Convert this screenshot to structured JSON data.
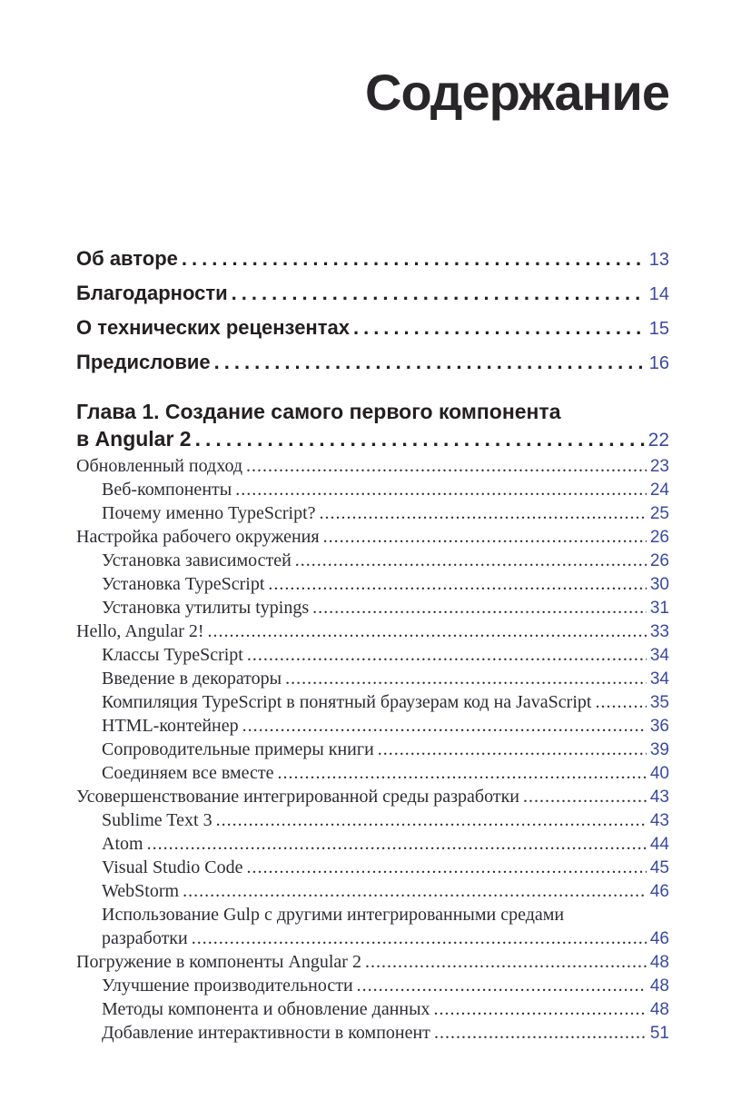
{
  "page": {
    "title": "Содержание"
  },
  "colors": {
    "page_number_blue": "#3a49a0",
    "heading_black": "#231f20",
    "body_text": "#2c2c33",
    "background": "#ffffff"
  },
  "front_matter": [
    {
      "label": "Об авторе",
      "page": "13"
    },
    {
      "label": "Благодарности",
      "page": "14"
    },
    {
      "label": "О технических рецензентах",
      "page": "15"
    },
    {
      "label": "Предисловие",
      "page": "16"
    }
  ],
  "chapter": {
    "line1": "Глава 1. Создание самого первого компонента",
    "line2": "в Angular 2",
    "page": "22"
  },
  "toc_entries": [
    {
      "text": "Обновленный подход",
      "page": "23",
      "level": 0
    },
    {
      "text": "Веб-компоненты",
      "page": "24",
      "level": 1
    },
    {
      "text": "Почему именно TypeScript?",
      "page": "25",
      "level": 1
    },
    {
      "text": "Настройка рабочего окружения",
      "page": "26",
      "level": 0
    },
    {
      "text": "Установка зависимостей",
      "page": "26",
      "level": 1
    },
    {
      "text": "Установка TypeScript",
      "page": "30",
      "level": 1
    },
    {
      "text": "Установка утилиты typings",
      "page": "31",
      "level": 1
    },
    {
      "text": "Hello, Angular 2!",
      "page": "33",
      "level": 0
    },
    {
      "text": "Классы TypeScript",
      "page": "34",
      "level": 1
    },
    {
      "text": "Введение в декораторы",
      "page": "34",
      "level": 1
    },
    {
      "text": "Компиляция TypeScript в понятный браузерам код на JavaScript",
      "page": "35",
      "level": 1
    },
    {
      "text": "HTML-контейнер",
      "page": "36",
      "level": 1
    },
    {
      "text": "Сопроводительные примеры книги",
      "page": "39",
      "level": 1
    },
    {
      "text": "Соединяем все вместе",
      "page": "40",
      "level": 1
    },
    {
      "text": "Усовершенствование интегрированной среды разработки",
      "page": "43",
      "level": 0
    },
    {
      "text": "Sublime Text 3",
      "page": "43",
      "level": 1
    },
    {
      "text": "Atom",
      "page": "44",
      "level": 1
    },
    {
      "text": "Visual Studio Code",
      "page": "45",
      "level": 1
    },
    {
      "text": "WebStorm",
      "page": "46",
      "level": 1
    },
    {
      "text": "Использование Gulp с другими интегрированными средами",
      "page": "",
      "level": 1
    },
    {
      "text": "разработки",
      "page": "46",
      "level": 1
    },
    {
      "text": "Погружение в компоненты Angular 2",
      "page": "48",
      "level": 0
    },
    {
      "text": "Улучшение производительности",
      "page": "48",
      "level": 1
    },
    {
      "text": "Методы компонента и обновление данных",
      "page": "48",
      "level": 1
    },
    {
      "text": "Добавление интерактивности в компонент",
      "page": "51",
      "level": 1
    }
  ]
}
